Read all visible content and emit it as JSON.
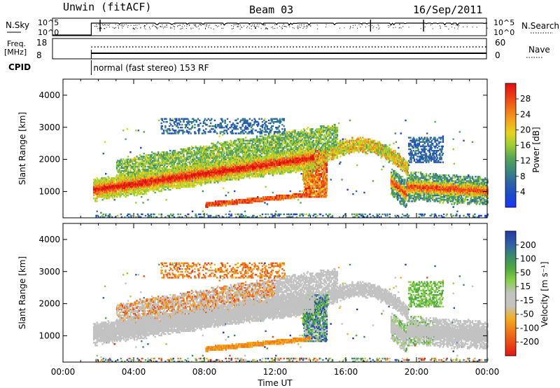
{
  "header": {
    "radar": "Unwin (fitACF)",
    "beam": "Beam 03",
    "date": "16/Sep/2011"
  },
  "status_panel": {
    "left_label_top": "N.Sky",
    "left_ticks": [
      "10^5",
      "10^0"
    ],
    "right_ticks": [
      "10^5",
      "10^0"
    ],
    "right_label_top": "N.Search",
    "freq_label": "Freq.",
    "freq_unit": "[MHz]",
    "freq_ticks": [
      "18",
      "8"
    ],
    "nave_ticks": [
      "60",
      "0"
    ],
    "right_label_bottom": "Nave",
    "cpid_label": "CPID",
    "cpid_text": "normal (fast stereo) 153 RF",
    "cpid_start_hour": 1.6
  },
  "chart_data": [
    {
      "type": "heatmap",
      "name": "power",
      "ylabel": "Slant Range [km]",
      "xlim": [
        0,
        24
      ],
      "ylim": [
        180,
        4500
      ],
      "yticks": [
        "1000",
        "2000",
        "3000",
        "4000"
      ],
      "colorbar": {
        "label": "Power [dB]",
        "ticks": [
          "4",
          "8",
          "12",
          "16",
          "20",
          "24",
          "28"
        ],
        "colors": [
          "#1e33ff",
          "#1a4cc8",
          "#2e63a6",
          "#3c8a7a",
          "#57a557",
          "#9ccd34",
          "#e7d31e",
          "#f4a41c",
          "#f07018",
          "#ec3a16",
          "#e20e12"
        ]
      },
      "features": [
        {
          "label": "main band",
          "hours": [
            1.7,
            14.5
          ],
          "range_km": [
            1000,
            2200
          ]
        },
        {
          "label": "upper band",
          "hours": [
            3.5,
            15
          ],
          "range_km": [
            1300,
            3100
          ]
        },
        {
          "label": "lower band",
          "hours": [
            8,
            14
          ],
          "range_km": [
            550,
            900
          ]
        },
        {
          "label": "arch",
          "hours": [
            14,
            19.5
          ],
          "range_km": [
            1500,
            2450
          ]
        },
        {
          "label": "evening band",
          "hours": [
            18.5,
            24
          ],
          "range_km": [
            900,
            2100
          ]
        }
      ]
    },
    {
      "type": "heatmap",
      "name": "velocity",
      "xlabel": "Time UT",
      "ylabel": "Slant Range [km]",
      "xlim": [
        0,
        24
      ],
      "ylim": [
        180,
        4500
      ],
      "xticks": [
        "00:00",
        "04:00",
        "08:00",
        "12:00",
        "16:00",
        "20:00",
        "00:00"
      ],
      "yticks": [
        "1000",
        "2000",
        "3000",
        "4000"
      ],
      "colorbar": {
        "label": "Velocity [m s⁻¹]",
        "ticks": [
          "200",
          "100",
          "50",
          "15",
          "-15",
          "-50",
          "-100",
          "-200"
        ],
        "colors": [
          "#2438a6",
          "#2f5ea8",
          "#3a8a6e",
          "#4faa3e",
          "#8ad04a",
          "#c2c2c2",
          "#c4c4be",
          "#f2ad20",
          "#f17a19",
          "#ea4a18",
          "#e21414"
        ]
      },
      "features": [
        {
          "label": "ground scatter (grey)",
          "hours": [
            1.7,
            24
          ],
          "range_km": [
            900,
            2600
          ]
        },
        {
          "label": "negative flow (orange)",
          "hours": [
            3,
            12
          ],
          "range_km": [
            1200,
            3200
          ]
        },
        {
          "label": "positive flow (blue/green)",
          "hours": [
            13.5,
            15
          ],
          "range_km": [
            800,
            2300
          ]
        },
        {
          "label": "positive flow (green)",
          "hours": [
            18.5,
            21
          ],
          "range_km": [
            1200,
            2700
          ]
        }
      ]
    }
  ]
}
